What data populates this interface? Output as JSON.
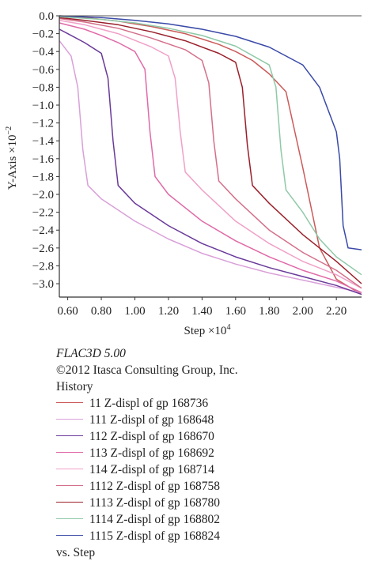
{
  "chart_data": {
    "type": "line",
    "xlabel": "Step ×10",
    "xlabel_exp": "4",
    "ylabel": "Y-Axis ×10",
    "ylabel_exp": "−2",
    "xlim": [
      0.55,
      2.35
    ],
    "ylim": [
      -3.15,
      0.0
    ],
    "x_ticks": [
      0.6,
      0.8,
      1.0,
      1.2,
      1.4,
      1.6,
      1.8,
      2.0,
      2.2
    ],
    "x_tick_labels": [
      "0.60",
      "0.80",
      "1.00",
      "1.20",
      "1.40",
      "1.60",
      "1.80",
      "2.00",
      "2.20"
    ],
    "y_ticks": [
      0.0,
      -0.2,
      -0.4,
      -0.6,
      -0.8,
      -1.0,
      -1.2,
      -1.4,
      -1.6,
      -1.8,
      -2.0,
      -2.2,
      -2.4,
      -2.6,
      -2.8,
      -3.0
    ],
    "y_tick_labels": [
      "0.0",
      "−0.2",
      "−0.4",
      "−0.6",
      "−0.8",
      "−1.0",
      "−1.2",
      "−1.4",
      "−1.6",
      "−1.8",
      "−2.0",
      "−2.2",
      "−2.4",
      "−2.6",
      "−2.8",
      "−3.0"
    ],
    "grid": false,
    "legend_position": "below",
    "series": [
      {
        "name": "11 Z-displ of gp 168736",
        "color": "#cc5a5a",
        "x": [
          0.55,
          0.6,
          0.7,
          0.8,
          0.9,
          1.0,
          1.1,
          1.2,
          1.3,
          1.4,
          1.5,
          1.6,
          1.7,
          1.8,
          1.9,
          2.0,
          2.1,
          2.2,
          2.35
        ],
        "y": [
          0.0,
          -0.01,
          -0.02,
          -0.04,
          -0.06,
          -0.09,
          -0.12,
          -0.16,
          -0.2,
          -0.26,
          -0.32,
          -0.4,
          -0.5,
          -0.65,
          -0.85,
          -1.7,
          -2.6,
          -2.95,
          -3.12
        ]
      },
      {
        "name": "111 Z-displ of gp 168648",
        "color": "#d9a0d9",
        "x": [
          0.55,
          0.62,
          0.66,
          0.69,
          0.72,
          0.8,
          1.0,
          1.2,
          1.4,
          1.6,
          1.8,
          2.0,
          2.2,
          2.35
        ],
        "y": [
          -0.28,
          -0.45,
          -0.8,
          -1.5,
          -1.9,
          -2.05,
          -2.3,
          -2.5,
          -2.66,
          -2.78,
          -2.88,
          -2.96,
          -3.04,
          -3.1
        ]
      },
      {
        "name": "112 Z-displ of gp 168670",
        "color": "#6a3a9a",
        "x": [
          0.55,
          0.6,
          0.7,
          0.8,
          0.84,
          0.87,
          0.9,
          1.0,
          1.2,
          1.4,
          1.6,
          1.8,
          2.0,
          2.2,
          2.35
        ],
        "y": [
          -0.15,
          -0.2,
          -0.3,
          -0.42,
          -0.7,
          -1.4,
          -1.9,
          -2.1,
          -2.35,
          -2.55,
          -2.7,
          -2.82,
          -2.92,
          -3.02,
          -3.12
        ]
      },
      {
        "name": "113 Z-displ of gp 168692",
        "color": "#e06aa8",
        "x": [
          0.55,
          0.7,
          0.8,
          0.9,
          1.0,
          1.06,
          1.09,
          1.12,
          1.2,
          1.4,
          1.6,
          1.8,
          2.0,
          2.2,
          2.35
        ],
        "y": [
          -0.08,
          -0.15,
          -0.22,
          -0.3,
          -0.4,
          -0.6,
          -1.3,
          -1.8,
          -2.0,
          -2.3,
          -2.52,
          -2.7,
          -2.85,
          -2.97,
          -3.1
        ]
      },
      {
        "name": "114 Z-displ of gp 168714",
        "color": "#f0a0c8",
        "x": [
          0.55,
          0.7,
          0.9,
          1.1,
          1.2,
          1.24,
          1.27,
          1.3,
          1.4,
          1.6,
          1.8,
          2.0,
          2.2,
          2.35
        ],
        "y": [
          -0.05,
          -0.1,
          -0.2,
          -0.35,
          -0.45,
          -0.7,
          -1.3,
          -1.75,
          -1.95,
          -2.3,
          -2.55,
          -2.75,
          -2.9,
          -3.05
        ]
      },
      {
        "name": "1112 Z-displ of gp 168758",
        "color": "#d46f8a",
        "x": [
          0.55,
          0.7,
          0.9,
          1.1,
          1.3,
          1.4,
          1.44,
          1.47,
          1.5,
          1.6,
          1.8,
          2.0,
          2.2,
          2.35
        ],
        "y": [
          -0.03,
          -0.07,
          -0.14,
          -0.25,
          -0.38,
          -0.5,
          -0.75,
          -1.4,
          -1.85,
          -2.05,
          -2.4,
          -2.65,
          -2.85,
          -3.05
        ]
      },
      {
        "name": "1113 Z-displ of gp 168780",
        "color": "#9a1f2a",
        "x": [
          0.55,
          0.7,
          0.9,
          1.1,
          1.3,
          1.5,
          1.6,
          1.64,
          1.67,
          1.7,
          1.8,
          2.0,
          2.2,
          2.35
        ],
        "y": [
          -0.02,
          -0.05,
          -0.1,
          -0.18,
          -0.28,
          -0.42,
          -0.52,
          -0.8,
          -1.45,
          -1.9,
          -2.1,
          -2.45,
          -2.75,
          -3.0
        ]
      },
      {
        "name": "1114 Z-displ of gp 168802",
        "color": "#8fc9a8",
        "x": [
          0.55,
          0.8,
          1.0,
          1.2,
          1.4,
          1.6,
          1.8,
          1.84,
          1.87,
          1.9,
          2.0,
          2.1,
          2.2,
          2.35
        ],
        "y": [
          -0.01,
          -0.04,
          -0.08,
          -0.14,
          -0.22,
          -0.34,
          -0.55,
          -0.8,
          -1.5,
          -1.95,
          -2.2,
          -2.5,
          -2.7,
          -2.9
        ]
      },
      {
        "name": "1115 Z-displ of gp 168824",
        "color": "#3a4aa8",
        "x": [
          0.55,
          0.8,
          1.0,
          1.2,
          1.4,
          1.6,
          1.8,
          2.0,
          2.1,
          2.2,
          2.22,
          2.24,
          2.27,
          2.35
        ],
        "y": [
          0.0,
          -0.02,
          -0.05,
          -0.09,
          -0.15,
          -0.23,
          -0.35,
          -0.55,
          -0.8,
          -1.3,
          -1.6,
          -2.35,
          -2.6,
          -2.62
        ]
      }
    ]
  },
  "legend": {
    "app_line": "FLAC3D 5.00",
    "copyright_line": "©2012 Itasca Consulting Group, Inc.",
    "history_line": "History",
    "vs_line": "vs. Step"
  }
}
